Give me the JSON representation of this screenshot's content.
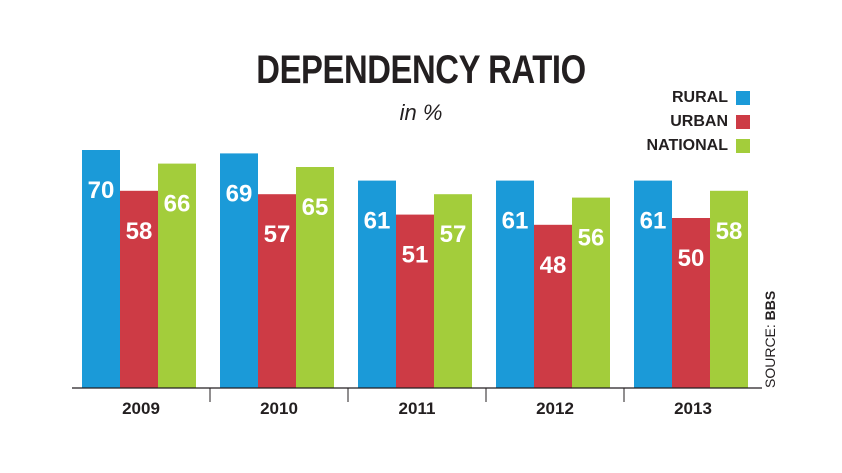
{
  "chart_data": {
    "type": "bar",
    "title": "DEPENDENCY RATIO",
    "subtitle": "in %",
    "categories": [
      "2009",
      "2010",
      "2011",
      "2012",
      "2013"
    ],
    "series": [
      {
        "name": "RURAL",
        "color": "#1b9ad8",
        "values": [
          70,
          69,
          61,
          61,
          61
        ]
      },
      {
        "name": "URBAN",
        "color": "#cd3b45",
        "values": [
          58,
          57,
          51,
          48,
          50
        ]
      },
      {
        "name": "NATIONAL",
        "color": "#a3cd3b",
        "values": [
          66,
          65,
          57,
          56,
          58
        ]
      }
    ],
    "ylim": [
      0,
      70
    ],
    "grid": false,
    "legend": "top-right",
    "source_prefix": "SOURCE: ",
    "source_name": "BBS"
  }
}
